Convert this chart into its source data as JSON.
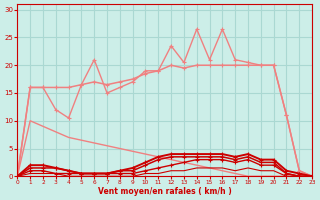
{
  "background_color": "#cceee8",
  "grid_color": "#aad8d2",
  "x_label": "Vent moyen/en rafales ( km/h )",
  "x_ticks": [
    0,
    1,
    2,
    3,
    4,
    5,
    6,
    7,
    8,
    9,
    10,
    11,
    12,
    13,
    14,
    15,
    16,
    17,
    18,
    19,
    20,
    21,
    22,
    23
  ],
  "y_ticks": [
    0,
    5,
    10,
    15,
    20,
    25,
    30
  ],
  "ylim": [
    0,
    31
  ],
  "xlim": [
    0,
    23
  ],
  "series": [
    {
      "x": [
        0,
        1,
        2,
        3,
        4,
        5,
        6,
        7,
        8,
        9,
        10,
        11,
        12,
        13,
        14,
        15,
        16,
        17,
        18,
        19,
        20,
        21,
        22,
        23
      ],
      "y": [
        0,
        16,
        16,
        16,
        16,
        16.5,
        17,
        16.5,
        17,
        17.5,
        18.5,
        19,
        20,
        19.5,
        20,
        20,
        20,
        20,
        20,
        20,
        20,
        11,
        1,
        0
      ],
      "color": "#f08080",
      "marker": "+",
      "linewidth": 1.1,
      "markersize": 3.5
    },
    {
      "x": [
        0,
        1,
        2,
        3,
        4,
        5,
        6,
        7,
        8,
        9,
        10,
        11,
        12,
        13,
        14,
        15,
        16,
        17,
        18,
        19,
        20,
        21,
        22,
        23
      ],
      "y": [
        0,
        16,
        16,
        12,
        10.5,
        16.5,
        21,
        15,
        16,
        17,
        19,
        19,
        23.5,
        20.5,
        26.5,
        21,
        26.5,
        21,
        20.5,
        20,
        20,
        11,
        1,
        0
      ],
      "color": "#f08080",
      "marker": "+",
      "linewidth": 1.0,
      "markersize": 3.5
    },
    {
      "x": [
        0,
        1,
        2,
        3,
        4,
        5,
        6,
        7,
        8,
        9,
        10,
        11,
        12,
        13,
        14,
        15,
        16,
        17,
        18,
        19,
        20,
        21,
        22,
        23
      ],
      "y": [
        0,
        10,
        9,
        8,
        7,
        6.5,
        6,
        5.5,
        5,
        4.5,
        4,
        3.5,
        3,
        2.5,
        2,
        1.5,
        1,
        0.5,
        0,
        0,
        0,
        0,
        0,
        0
      ],
      "color": "#f08080",
      "marker": null,
      "linewidth": 1.0,
      "markersize": 0
    },
    {
      "x": [
        0,
        1,
        2,
        3,
        4,
        5,
        6,
        7,
        8,
        9,
        10,
        11,
        12,
        13,
        14,
        15,
        16,
        17,
        18,
        19,
        20,
        21,
        22,
        23
      ],
      "y": [
        0,
        2,
        2,
        1.5,
        1,
        0.5,
        0.5,
        0.5,
        1,
        1.5,
        2.5,
        3.5,
        4,
        4,
        4,
        4,
        4,
        3.5,
        4,
        3,
        3,
        1,
        0.5,
        0
      ],
      "color": "#cc0000",
      "marker": "+",
      "linewidth": 1.4,
      "markersize": 3.5
    },
    {
      "x": [
        0,
        1,
        2,
        3,
        4,
        5,
        6,
        7,
        8,
        9,
        10,
        11,
        12,
        13,
        14,
        15,
        16,
        17,
        18,
        19,
        20,
        21,
        22,
        23
      ],
      "y": [
        0,
        1.5,
        1.5,
        1.5,
        1,
        0.5,
        0.5,
        0.5,
        1,
        1,
        2,
        3,
        3.5,
        3.5,
        3.5,
        3.5,
        3.5,
        3,
        3.5,
        2.5,
        2.5,
        0.5,
        0,
        0
      ],
      "color": "#cc0000",
      "marker": "+",
      "linewidth": 1.1,
      "markersize": 3.5
    },
    {
      "x": [
        0,
        1,
        2,
        3,
        4,
        5,
        6,
        7,
        8,
        9,
        10,
        11,
        12,
        13,
        14,
        15,
        16,
        17,
        18,
        19,
        20,
        21,
        22,
        23
      ],
      "y": [
        0,
        1,
        1,
        0.5,
        0.5,
        0.5,
        0.5,
        0.5,
        0.5,
        0.5,
        1,
        1.5,
        2,
        2.5,
        3,
        3,
        3,
        2.5,
        3,
        2,
        2,
        0.5,
        0,
        0
      ],
      "color": "#cc0000",
      "marker": "+",
      "linewidth": 1.0,
      "markersize": 3
    },
    {
      "x": [
        0,
        1,
        2,
        3,
        4,
        5,
        6,
        7,
        8,
        9,
        10,
        11,
        12,
        13,
        14,
        15,
        16,
        17,
        18,
        19,
        20,
        21,
        22,
        23
      ],
      "y": [
        0,
        0.5,
        0.5,
        0.5,
        0,
        0,
        0,
        0,
        0,
        0,
        0.5,
        0.5,
        1,
        1,
        1.5,
        1.5,
        1.5,
        1,
        1.5,
        1,
        1,
        0,
        0,
        0
      ],
      "color": "#cc0000",
      "marker": null,
      "linewidth": 0.8,
      "markersize": 0
    }
  ]
}
